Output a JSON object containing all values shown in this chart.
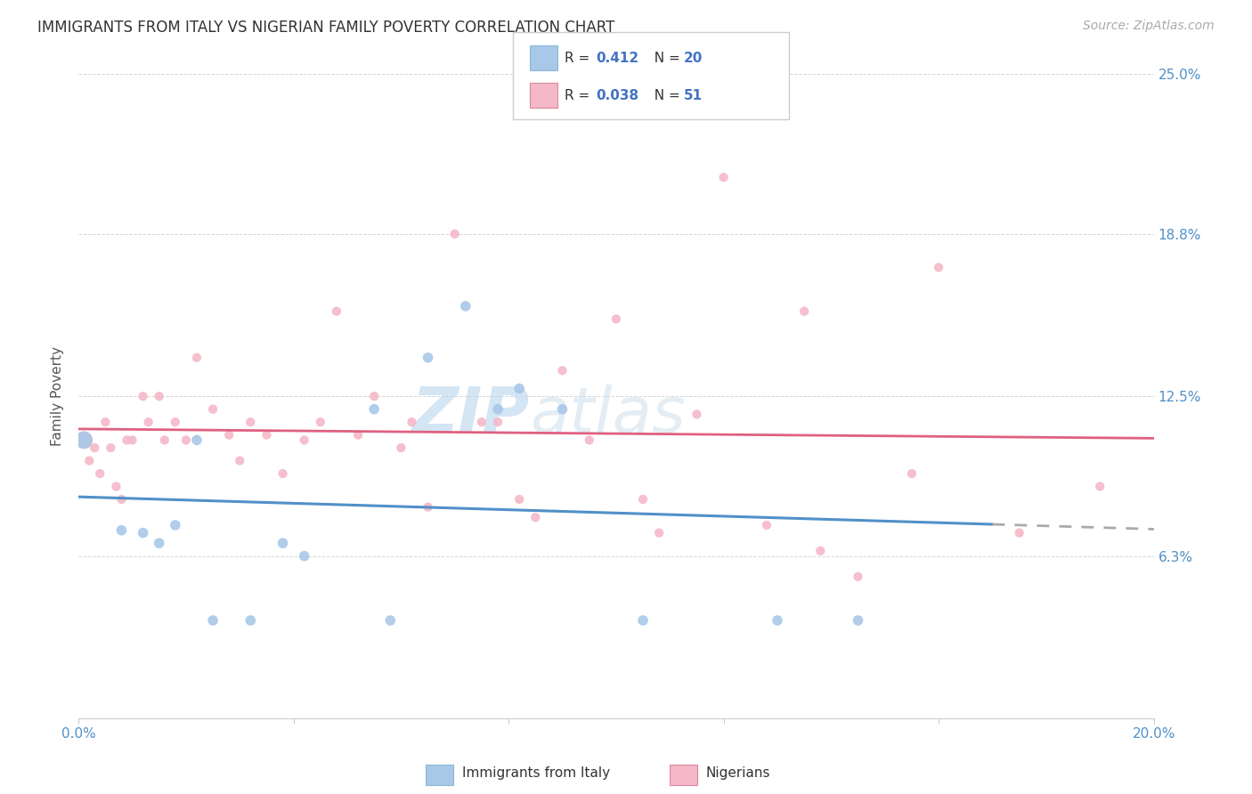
{
  "title": "IMMIGRANTS FROM ITALY VS NIGERIAN FAMILY POVERTY CORRELATION CHART",
  "source": "Source: ZipAtlas.com",
  "ylabel": "Family Poverty",
  "legend_label1": "Immigrants from Italy",
  "legend_label2": "Nigerians",
  "R1": "0.412",
  "N1": "20",
  "R2": "0.038",
  "N2": "51",
  "color_italy": "#a8c8e8",
  "color_nigeria": "#f5b8c8",
  "color_line_italy": "#5090c8",
  "color_line_nigeria": "#e06080",
  "watermark_zip": "ZIP",
  "watermark_atlas": "atlas",
  "xmin": 0.0,
  "xmax": 0.2,
  "ymin": 0.0,
  "ymax": 0.25,
  "yticks": [
    0.0,
    0.063,
    0.125,
    0.188,
    0.25
  ],
  "ytick_labels": [
    "",
    "6.3%",
    "12.5%",
    "18.8%",
    "25.0%"
  ],
  "xticks": [
    0.0,
    0.04,
    0.08,
    0.12,
    0.16,
    0.2
  ],
  "xtick_labels": [
    "0.0%",
    "",
    "",
    "",
    "",
    "20.0%"
  ],
  "italy_x": [
    0.001,
    0.008,
    0.012,
    0.015,
    0.018,
    0.022,
    0.025,
    0.032,
    0.038,
    0.042,
    0.055,
    0.058,
    0.065,
    0.072,
    0.078,
    0.082,
    0.09,
    0.105,
    0.13,
    0.145
  ],
  "italy_y": [
    0.108,
    0.073,
    0.072,
    0.068,
    0.075,
    0.108,
    0.038,
    0.038,
    0.068,
    0.063,
    0.12,
    0.038,
    0.14,
    0.16,
    0.12,
    0.128,
    0.12,
    0.038,
    0.038,
    0.038
  ],
  "italy_sizes": [
    200,
    70,
    70,
    70,
    70,
    70,
    70,
    70,
    70,
    70,
    70,
    70,
    70,
    70,
    70,
    70,
    70,
    70,
    70,
    70
  ],
  "nigeria_x": [
    0.001,
    0.002,
    0.003,
    0.004,
    0.005,
    0.006,
    0.007,
    0.008,
    0.009,
    0.01,
    0.012,
    0.013,
    0.015,
    0.016,
    0.018,
    0.02,
    0.022,
    0.025,
    0.028,
    0.03,
    0.032,
    0.035,
    0.038,
    0.042,
    0.045,
    0.048,
    0.052,
    0.055,
    0.06,
    0.062,
    0.065,
    0.07,
    0.075,
    0.078,
    0.082,
    0.085,
    0.09,
    0.095,
    0.1,
    0.105,
    0.108,
    0.115,
    0.12,
    0.128,
    0.135,
    0.138,
    0.145,
    0.155,
    0.16,
    0.175,
    0.19
  ],
  "nigeria_y": [
    0.108,
    0.1,
    0.105,
    0.095,
    0.115,
    0.105,
    0.09,
    0.085,
    0.108,
    0.108,
    0.125,
    0.115,
    0.125,
    0.108,
    0.115,
    0.108,
    0.14,
    0.12,
    0.11,
    0.1,
    0.115,
    0.11,
    0.095,
    0.108,
    0.115,
    0.158,
    0.11,
    0.125,
    0.105,
    0.115,
    0.082,
    0.188,
    0.115,
    0.115,
    0.085,
    0.078,
    0.135,
    0.108,
    0.155,
    0.085,
    0.072,
    0.118,
    0.21,
    0.075,
    0.158,
    0.065,
    0.055,
    0.095,
    0.175,
    0.072,
    0.09
  ],
  "nigeria_sizes": [
    200,
    55,
    55,
    55,
    55,
    55,
    55,
    55,
    55,
    55,
    55,
    55,
    55,
    55,
    55,
    55,
    55,
    55,
    55,
    55,
    55,
    55,
    55,
    55,
    55,
    55,
    55,
    55,
    55,
    55,
    55,
    55,
    55,
    55,
    55,
    55,
    55,
    55,
    55,
    55,
    55,
    55,
    55,
    55,
    55,
    55,
    55,
    55,
    55,
    55,
    55
  ]
}
